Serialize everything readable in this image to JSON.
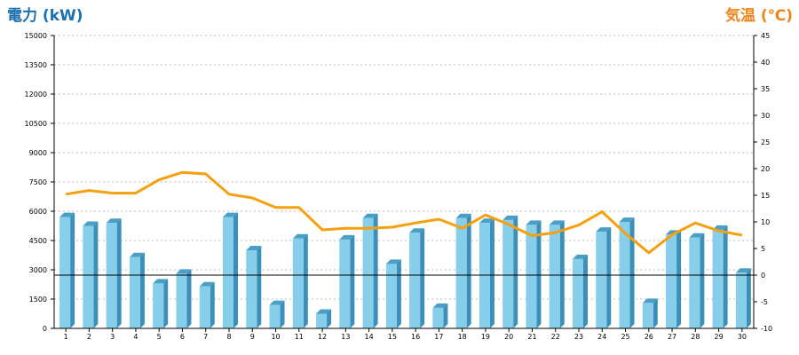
{
  "chart_data": {
    "type": "bar",
    "x": [
      "1",
      "2",
      "3",
      "4",
      "5",
      "6",
      "7",
      "8",
      "9",
      "10",
      "11",
      "12",
      "13",
      "14",
      "15",
      "16",
      "17",
      "18",
      "19",
      "20",
      "21",
      "22",
      "23",
      "24",
      "25",
      "26",
      "27",
      "28",
      "29",
      "30"
    ],
    "series": [
      {
        "name": "電力 (kW)",
        "type": "bar",
        "axis": "left",
        "color": "#87ceeb",
        "values": [
          5700,
          5250,
          5400,
          3650,
          2300,
          2800,
          2150,
          5700,
          4000,
          1200,
          4600,
          750,
          4550,
          5650,
          3300,
          4900,
          1050,
          5650,
          5400,
          5550,
          5300,
          5300,
          3550,
          4950,
          5450,
          1300,
          4800,
          4650,
          5050,
          2850
        ]
      },
      {
        "name": "気温 (℃)",
        "type": "line",
        "axis": "right",
        "color": "#f5a00e",
        "values": [
          15.2,
          15.9,
          15.4,
          15.4,
          17.9,
          19.3,
          19.0,
          15.2,
          14.5,
          12.7,
          12.7,
          8.5,
          8.8,
          8.8,
          9.0,
          9.8,
          10.5,
          8.8,
          11.3,
          9.5,
          7.4,
          8.0,
          9.4,
          11.9,
          7.8,
          4.2,
          7.6,
          9.8,
          8.3,
          7.5
        ]
      }
    ],
    "y_left": {
      "title": "電力 (kW)",
      "title_color": "#1a6fb0",
      "ylim": [
        0,
        15000
      ],
      "ticks": [
        "0",
        "1500",
        "3000",
        "4500",
        "6000",
        "7500",
        "9000",
        "10500",
        "12000",
        "13500",
        "15000"
      ]
    },
    "y_right": {
      "title": "気温 (℃)",
      "title_color": "#f0851a",
      "ylim": [
        -10,
        45
      ],
      "ticks": [
        "-10",
        "-5",
        "0",
        "5",
        "10",
        "15",
        "20",
        "25",
        "30",
        "35",
        "40",
        "45"
      ]
    },
    "grid": true,
    "zero_line_right_value": 0
  }
}
